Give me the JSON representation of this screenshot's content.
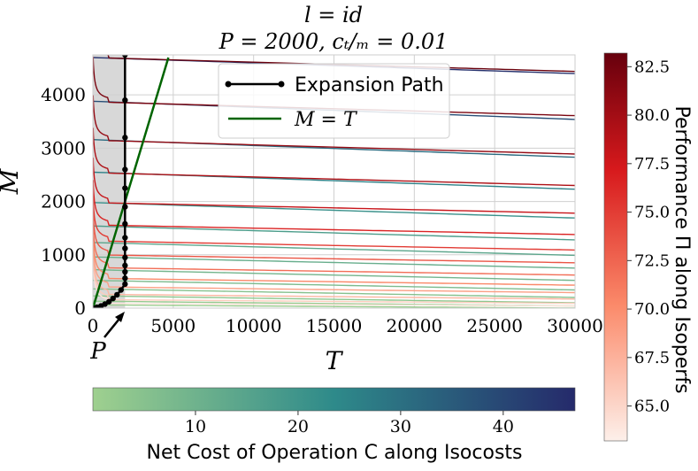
{
  "chart_data": {
    "type": "line",
    "title_line1": "l = id",
    "title_line2": "P = 2000, cₜ/ₘ = 0.01",
    "xlabel": "T",
    "ylabel": "M",
    "xlim": [
      0,
      30000
    ],
    "ylim": [
      0,
      4750
    ],
    "xticks": [
      0,
      5000,
      10000,
      15000,
      20000,
      25000,
      30000
    ],
    "xtick_labels": [
      "0",
      "5000",
      "10000",
      "15000",
      "20000",
      "25000",
      "30000"
    ],
    "yticks": [
      0,
      1000,
      2000,
      3000,
      4000
    ],
    "ytick_labels": [
      "0",
      "1000",
      "2000",
      "3000",
      "4000"
    ],
    "p_annotation": {
      "label": "P",
      "target_t": 2000,
      "target_m": 0
    },
    "shaded_region_t": [
      0,
      2000
    ],
    "legend": [
      {
        "label": "Expansion Path",
        "color": "#000000"
      },
      {
        "label": "M = T",
        "color": "#006400"
      }
    ],
    "expansion_path": {
      "t": [
        0,
        250,
        500,
        750,
        1000,
        1250,
        1500,
        1750,
        2000,
        2000,
        2000,
        2000,
        2000,
        2000,
        2000,
        2000,
        2000,
        2000,
        2000,
        2000,
        2000,
        2000
      ],
      "m": [
        0,
        15,
        40,
        75,
        120,
        180,
        250,
        340,
        450,
        560,
        680,
        800,
        950,
        1120,
        1320,
        1580,
        1900,
        2250,
        2600,
        3200,
        3900,
        4750
      ]
    },
    "mt_line": {
      "t": [
        0,
        4700
      ],
      "m": [
        0,
        4700
      ]
    },
    "isoperfs": [
      {
        "m0": 90,
        "m30k": 40,
        "perf": 64.0
      },
      {
        "m0": 160,
        "m30k": 90,
        "perf": 65.5
      },
      {
        "m0": 260,
        "m30k": 170,
        "perf": 67.0
      },
      {
        "m0": 400,
        "m30k": 290,
        "perf": 68.5
      },
      {
        "m0": 560,
        "m30k": 430,
        "perf": 70.0
      },
      {
        "m0": 760,
        "m30k": 620,
        "perf": 71.5
      },
      {
        "m0": 1000,
        "m30k": 850,
        "perf": 73.0
      },
      {
        "m0": 1260,
        "m30k": 1090,
        "perf": 74.5
      },
      {
        "m0": 1560,
        "m30k": 1380,
        "perf": 76.0
      },
      {
        "m0": 1980,
        "m30k": 1780,
        "perf": 77.5
      },
      {
        "m0": 2540,
        "m30k": 2300,
        "perf": 79.0
      },
      {
        "m0": 3150,
        "m30k": 2890,
        "perf": 80.5
      },
      {
        "m0": 3870,
        "m30k": 3610,
        "perf": 82.0
      },
      {
        "m0": 4700,
        "m30k": 4440,
        "perf": 83.0
      }
    ],
    "isocosts": [
      {
        "m0": 60,
        "m30k": 0,
        "cost": 1.0
      },
      {
        "m0": 130,
        "m30k": 40,
        "cost": 2.0
      },
      {
        "m0": 230,
        "m30k": 100,
        "cost": 3.5
      },
      {
        "m0": 360,
        "m30k": 200,
        "cost": 5.0
      },
      {
        "m0": 520,
        "m30k": 340,
        "cost": 7.0
      },
      {
        "m0": 720,
        "m30k": 520,
        "cost": 9.0
      },
      {
        "m0": 960,
        "m30k": 750,
        "cost": 11.5
      },
      {
        "m0": 1230,
        "m30k": 990,
        "cost": 14.0
      },
      {
        "m0": 1540,
        "m30k": 1280,
        "cost": 17.0
      },
      {
        "m0": 1980,
        "m30k": 1690,
        "cost": 21.0
      },
      {
        "m0": 2550,
        "m30k": 2230,
        "cost": 26.0
      },
      {
        "m0": 3160,
        "m30k": 2830,
        "cost": 31.0
      },
      {
        "m0": 3880,
        "m30k": 3540,
        "cost": 38.0
      },
      {
        "m0": 4700,
        "m30k": 4400,
        "cost": 45.0
      }
    ],
    "colorbar_cost": {
      "label": "Net Cost of Operation C along Isocosts",
      "min": 0,
      "max": 47,
      "ticks": [
        10,
        20,
        30,
        40
      ],
      "tick_labels": [
        "10",
        "20",
        "30",
        "40"
      ],
      "colors": [
        "#9fd08f",
        "#2e8a8a",
        "#252a6b"
      ]
    },
    "colorbar_perf": {
      "label": "Performance Π along Isoperfs",
      "min": 63.2,
      "max": 83.2,
      "ticks": [
        65.0,
        67.5,
        70.0,
        72.5,
        75.0,
        77.5,
        80.0,
        82.5
      ],
      "tick_labels": [
        "65.0",
        "67.5",
        "70.0",
        "72.5",
        "75.0",
        "77.5",
        "80.0",
        "82.5"
      ],
      "colors": [
        "#fdf0ea",
        "#fb8a6a",
        "#d7191c",
        "#67000d"
      ]
    }
  }
}
